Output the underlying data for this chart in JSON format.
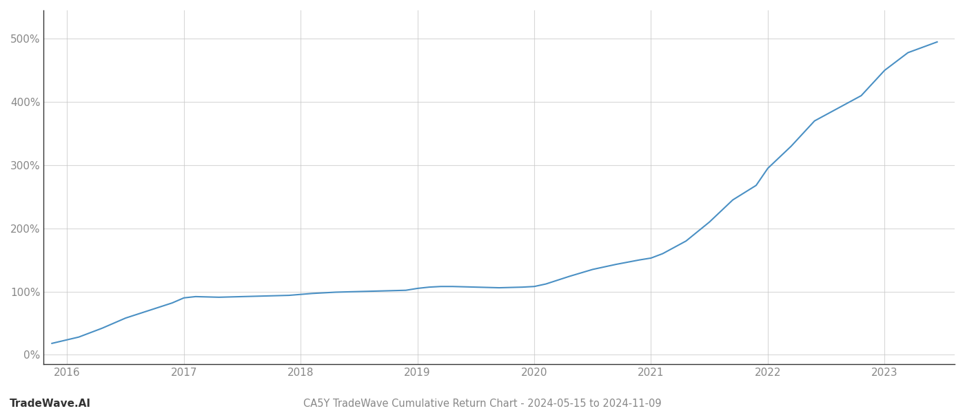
{
  "title": "CA5Y TradeWave Cumulative Return Chart - 2024-05-15 to 2024-11-09",
  "watermark": "TradeWave.AI",
  "line_color": "#4a90c4",
  "background_color": "#ffffff",
  "grid_color": "#c8c8c8",
  "x_years": [
    2016,
    2017,
    2018,
    2019,
    2020,
    2021,
    2022,
    2023
  ],
  "x_values": [
    2015.87,
    2016.1,
    2016.3,
    2016.5,
    2016.7,
    2016.9,
    2017.0,
    2017.1,
    2017.3,
    2017.5,
    2017.7,
    2017.9,
    2018.1,
    2018.3,
    2018.5,
    2018.7,
    2018.9,
    2019.0,
    2019.1,
    2019.2,
    2019.3,
    2019.5,
    2019.7,
    2019.9,
    2020.0,
    2020.1,
    2020.2,
    2020.3,
    2020.5,
    2020.7,
    2020.9,
    2021.0,
    2021.1,
    2021.3,
    2021.5,
    2021.7,
    2021.9,
    2022.0,
    2022.2,
    2022.4,
    2022.6,
    2022.8,
    2023.0,
    2023.2,
    2023.45
  ],
  "y_values": [
    18,
    28,
    42,
    58,
    70,
    82,
    90,
    92,
    91,
    92,
    93,
    94,
    97,
    99,
    100,
    101,
    102,
    105,
    107,
    108,
    108,
    107,
    106,
    107,
    108,
    112,
    118,
    124,
    135,
    143,
    150,
    153,
    160,
    180,
    210,
    245,
    268,
    295,
    330,
    370,
    390,
    410,
    450,
    478,
    495
  ],
  "ylim": [
    -15,
    545
  ],
  "yticks": [
    0,
    100,
    200,
    300,
    400,
    500
  ],
  "xlim": [
    2015.8,
    2023.6
  ],
  "line_width": 1.5,
  "title_fontsize": 10.5,
  "watermark_fontsize": 11,
  "tick_fontsize": 11,
  "tick_color": "#888888",
  "spine_color": "#333333",
  "grid_alpha": 0.7
}
